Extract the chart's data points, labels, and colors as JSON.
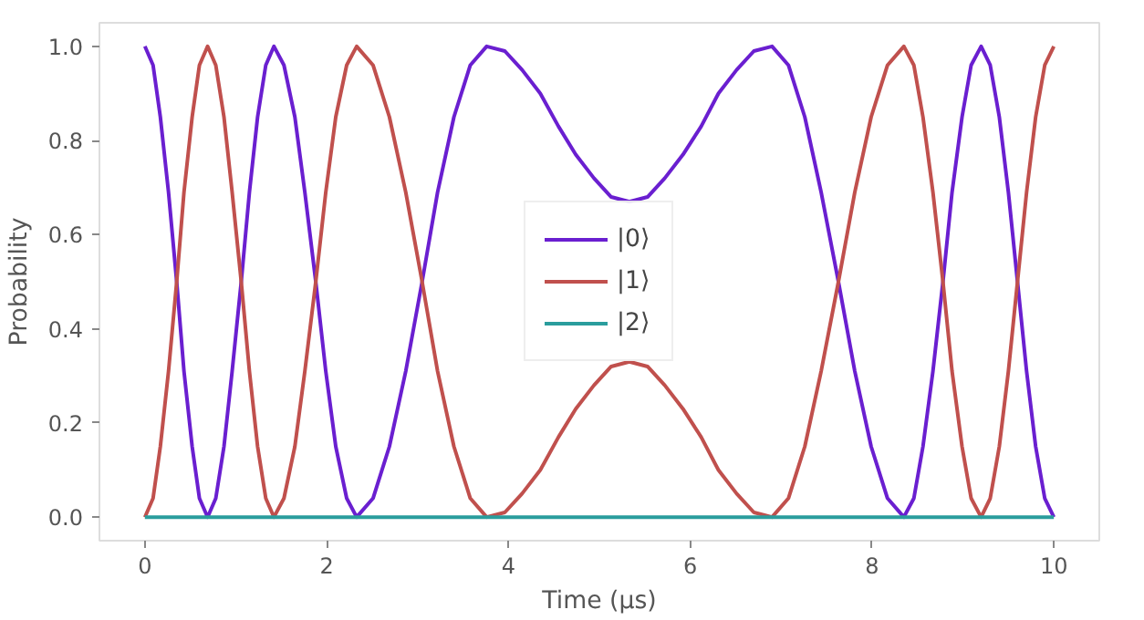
{
  "chart_data": {
    "type": "line",
    "xlabel": "Time (µs)",
    "ylabel": "Probability",
    "x": [
      0,
      0.09,
      0.17,
      0.26,
      0.35,
      0.43,
      0.52,
      0.6,
      0.69,
      0.78,
      0.87,
      0.96,
      1.06,
      1.15,
      1.24,
      1.33,
      1.42,
      1.53,
      1.65,
      1.76,
      1.88,
      1.99,
      2.1,
      2.22,
      2.33,
      2.51,
      2.69,
      2.87,
      3.05,
      3.22,
      3.4,
      3.58,
      3.76,
      3.96,
      4.15,
      4.35,
      4.55,
      4.74,
      4.94,
      5.13,
      5.33,
      5.53,
      5.72,
      5.92,
      6.12,
      6.31,
      6.51,
      6.7,
      6.9,
      7.08,
      7.26,
      7.44,
      7.63,
      7.81,
      7.99,
      8.17,
      8.35,
      8.46,
      8.56,
      8.67,
      8.78,
      8.88,
      8.99,
      9.09,
      9.2,
      9.3,
      9.4,
      9.5,
      9.6,
      9.7,
      9.8,
      9.9,
      10
    ],
    "series": [
      {
        "name": "|0⟩",
        "color": "#6a1fd0",
        "values": [
          1,
          0.96,
          0.85,
          0.69,
          0.5,
          0.31,
          0.15,
          0.04,
          0,
          0.04,
          0.15,
          0.31,
          0.5,
          0.69,
          0.85,
          0.96,
          1,
          0.96,
          0.85,
          0.69,
          0.5,
          0.31,
          0.15,
          0.04,
          0,
          0.04,
          0.15,
          0.31,
          0.5,
          0.69,
          0.85,
          0.96,
          1,
          0.99,
          0.95,
          0.9,
          0.83,
          0.77,
          0.72,
          0.68,
          0.67,
          0.68,
          0.72,
          0.77,
          0.83,
          0.9,
          0.95,
          0.99,
          1,
          0.96,
          0.85,
          0.69,
          0.5,
          0.31,
          0.15,
          0.04,
          0,
          0.04,
          0.15,
          0.31,
          0.5,
          0.69,
          0.85,
          0.96,
          1,
          0.96,
          0.85,
          0.69,
          0.5,
          0.31,
          0.15,
          0.04,
          0
        ]
      },
      {
        "name": "|1⟩",
        "color": "#c0504d",
        "values": [
          0,
          0.04,
          0.15,
          0.31,
          0.5,
          0.69,
          0.85,
          0.96,
          1,
          0.96,
          0.85,
          0.69,
          0.5,
          0.31,
          0.15,
          0.04,
          0,
          0.04,
          0.15,
          0.31,
          0.5,
          0.69,
          0.85,
          0.96,
          1,
          0.96,
          0.85,
          0.69,
          0.5,
          0.31,
          0.15,
          0.04,
          0,
          0.01,
          0.05,
          0.1,
          0.17,
          0.23,
          0.28,
          0.32,
          0.33,
          0.32,
          0.28,
          0.23,
          0.17,
          0.1,
          0.05,
          0.01,
          0,
          0.04,
          0.15,
          0.31,
          0.5,
          0.69,
          0.85,
          0.96,
          1,
          0.96,
          0.85,
          0.69,
          0.5,
          0.31,
          0.15,
          0.04,
          0,
          0.04,
          0.15,
          0.31,
          0.5,
          0.69,
          0.85,
          0.96,
          1
        ]
      },
      {
        "name": "|2⟩",
        "color": "#2a9d9d",
        "x": [
          0,
          10
        ],
        "values": [
          0,
          0
        ]
      }
    ],
    "xlim": [
      -0.5,
      10.5
    ],
    "ylim": [
      -0.05,
      1.05
    ],
    "xticks": [
      0,
      2,
      4,
      6,
      8,
      10
    ],
    "yticks": [
      {
        "value": 0,
        "label": "0.0"
      },
      {
        "value": 0.2,
        "label": "0.2"
      },
      {
        "value": 0.4,
        "label": "0.4"
      },
      {
        "value": 0.6,
        "label": "0.6"
      },
      {
        "value": 0.8,
        "label": "0.8"
      },
      {
        "value": 1,
        "label": "1.0"
      }
    ],
    "grid": false,
    "legend": "center"
  }
}
